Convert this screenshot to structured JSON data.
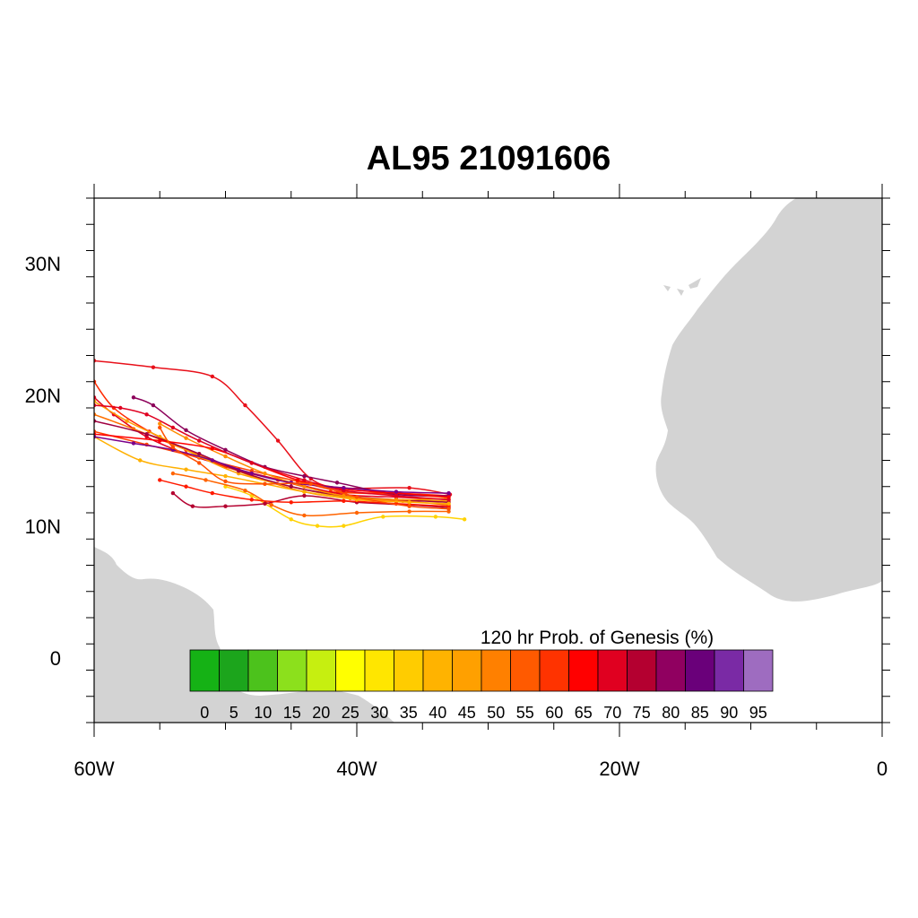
{
  "title": "AL95 21091606",
  "map": {
    "lon_range": [
      -60,
      0
    ],
    "lat_range": [
      -5,
      35
    ],
    "x_ticks": [
      {
        "lon": -60,
        "label": "60W"
      },
      {
        "lon": -40,
        "label": "40W"
      },
      {
        "lon": -20,
        "label": "20W"
      },
      {
        "lon": 0,
        "label": "0"
      }
    ],
    "y_ticks": [
      {
        "lat": 30,
        "label": "30N"
      },
      {
        "lat": 20,
        "label": "20N"
      },
      {
        "lat": 10,
        "label": "10N"
      },
      {
        "lat": 0,
        "label": "0"
      }
    ],
    "land_color": "#d3d3d3"
  },
  "colorbar": {
    "title": "120 hr Prob. of Genesis (%)",
    "labels": [
      "0",
      "5",
      "10",
      "15",
      "20",
      "25",
      "30",
      "35",
      "40",
      "45",
      "50",
      "55",
      "60",
      "65",
      "70",
      "75",
      "80",
      "85",
      "90",
      "95"
    ],
    "colors": [
      "#15b215",
      "#1ca51c",
      "#4cc21c",
      "#8ce01c",
      "#c6ef10",
      "#ffff00",
      "#ffe600",
      "#ffcc00",
      "#ffb300",
      "#ffa000",
      "#ff8000",
      "#ff5a00",
      "#ff3300",
      "#ff0000",
      "#e00020",
      "#b40030",
      "#900060",
      "#6a007a",
      "#7a2aa5",
      "#9e6cc0"
    ]
  },
  "tracks": [
    {
      "color": "#e8101a",
      "points": [
        [
          -32.9,
          12.4
        ],
        [
          -36,
          12.9
        ],
        [
          -41,
          12.9
        ],
        [
          -43.5,
          13.6
        ],
        [
          -46,
          16.5
        ],
        [
          -48.5,
          19.2
        ],
        [
          -51,
          21.4
        ],
        [
          -55.5,
          22.1
        ],
        [
          -60,
          22.6
        ]
      ]
    },
    {
      "color": "#ff2a00",
      "points": [
        [
          -33,
          12.3
        ],
        [
          -37,
          12.5
        ],
        [
          -42,
          12.6
        ],
        [
          -46,
          13.5
        ],
        [
          -50,
          14.5
        ],
        [
          -53,
          15.8
        ],
        [
          -55.8,
          17.2
        ],
        [
          -58.5,
          19.0
        ],
        [
          -60,
          21.0
        ]
      ]
    },
    {
      "color": "#e4001e",
      "points": [
        [
          -33,
          12.0
        ],
        [
          -37,
          12.2
        ],
        [
          -41,
          12.4
        ],
        [
          -45,
          13.3
        ],
        [
          -49,
          14.3
        ],
        [
          -53,
          15.5
        ],
        [
          -56,
          16.8
        ],
        [
          -58.5,
          18.5
        ],
        [
          -60,
          19.8
        ]
      ]
    },
    {
      "color": "#ff4000",
      "points": [
        [
          -33.2,
          12.2
        ],
        [
          -37,
          12.4
        ],
        [
          -41,
          12.6
        ],
        [
          -44.5,
          13.4
        ],
        [
          -48,
          14.2
        ],
        [
          -52,
          15.2
        ],
        [
          -56,
          16.2
        ],
        [
          -60,
          17.2
        ]
      ]
    },
    {
      "color": "#ff7000",
      "points": [
        [
          -33,
          11.6
        ],
        [
          -36.5,
          11.9
        ],
        [
          -40.5,
          12.1
        ],
        [
          -44,
          12.6
        ],
        [
          -48,
          13.8
        ],
        [
          -51,
          15.0
        ],
        [
          -54,
          16.2
        ],
        [
          -57,
          17.4
        ],
        [
          -60,
          18.5
        ]
      ]
    },
    {
      "color": "#ffa000",
      "points": [
        [
          -33,
          11.9
        ],
        [
          -37,
          12.0
        ],
        [
          -41,
          12.2
        ],
        [
          -45,
          13.0
        ],
        [
          -49,
          14.0
        ],
        [
          -52,
          15.3
        ],
        [
          -55,
          16.8
        ],
        [
          -57.5,
          18.0
        ],
        [
          -60,
          19.5
        ]
      ]
    },
    {
      "color": "#8c005a",
      "points": [
        [
          -33,
          12.3
        ],
        [
          -37,
          12.4
        ],
        [
          -41.5,
          13.3
        ],
        [
          -44,
          13.8
        ],
        [
          -47,
          14.5
        ],
        [
          -50,
          15.8
        ],
        [
          -53,
          17.3
        ],
        [
          -55.5,
          19.2
        ],
        [
          -57,
          19.8
        ]
      ]
    },
    {
      "color": "#a00040",
      "points": [
        [
          -33,
          11.8
        ],
        [
          -37,
          12.0
        ],
        [
          -41,
          12.3
        ],
        [
          -45,
          13.0
        ],
        [
          -49,
          14.2
        ],
        [
          -52,
          15.5
        ],
        [
          -56,
          17.0
        ],
        [
          -60,
          18.0
        ]
      ]
    },
    {
      "color": "#ffd200",
      "points": [
        [
          -31.8,
          10.5
        ],
        [
          -34,
          10.7
        ],
        [
          -38,
          10.7
        ],
        [
          -41,
          10.0
        ],
        [
          -43,
          10.0
        ],
        [
          -45,
          10.5
        ],
        [
          -48,
          12.3
        ],
        [
          -50,
          13.0
        ]
      ]
    },
    {
      "color": "#ff6400",
      "points": [
        [
          -33,
          11.1
        ],
        [
          -36,
          11.1
        ],
        [
          -40,
          11.0
        ],
        [
          -44,
          10.8
        ],
        [
          -46.5,
          11.6
        ],
        [
          -48.5,
          12.7
        ],
        [
          -51.5,
          13.5
        ],
        [
          -54,
          14.0
        ]
      ]
    },
    {
      "color": "#b40030",
      "points": [
        [
          -33,
          11.4
        ],
        [
          -36,
          11.6
        ],
        [
          -40,
          11.8
        ],
        [
          -44,
          12.3
        ],
        [
          -47,
          11.7
        ],
        [
          -50,
          11.5
        ],
        [
          -52.5,
          11.5
        ],
        [
          -54,
          12.5
        ]
      ]
    },
    {
      "color": "#ff1a00",
      "points": [
        [
          -33,
          11.5
        ],
        [
          -37,
          11.7
        ],
        [
          -41,
          11.9
        ],
        [
          -45,
          11.8
        ],
        [
          -48,
          12.0
        ],
        [
          -51,
          12.5
        ],
        [
          -53,
          13.0
        ],
        [
          -55,
          13.5
        ]
      ]
    },
    {
      "color": "#ff8c00",
      "points": [
        [
          -33,
          12.1
        ],
        [
          -37,
          12.0
        ],
        [
          -41,
          12.3
        ],
        [
          -44,
          13.0
        ],
        [
          -47,
          14.0
        ],
        [
          -50,
          15.3
        ],
        [
          -53,
          16.7
        ],
        [
          -55,
          17.8
        ]
      ]
    },
    {
      "color": "#ff0000",
      "points": [
        [
          -33,
          12.2
        ],
        [
          -37,
          12.5
        ],
        [
          -41,
          12.8
        ],
        [
          -44.5,
          13.5
        ],
        [
          -48,
          14.8
        ],
        [
          -51,
          15.9
        ],
        [
          -55,
          16.5
        ],
        [
          -60,
          17.0
        ]
      ]
    },
    {
      "color": "#ffb000",
      "points": [
        [
          -33,
          11.7
        ],
        [
          -36,
          11.8
        ],
        [
          -40,
          12.0
        ],
        [
          -44,
          12.6
        ],
        [
          -47,
          13.2
        ],
        [
          -50,
          13.8
        ],
        [
          -53,
          14.3
        ],
        [
          -56.5,
          15.0
        ],
        [
          -60,
          16.8
        ]
      ]
    },
    {
      "color": "#e00020",
      "points": [
        [
          -33,
          12.0
        ],
        [
          -37,
          12.3
        ],
        [
          -41,
          12.7
        ],
        [
          -44,
          13.5
        ],
        [
          -48,
          14.8
        ],
        [
          -52,
          16.5
        ],
        [
          -54,
          17.5
        ],
        [
          -56,
          18.5
        ],
        [
          -58,
          19.0
        ],
        [
          -60,
          19.2
        ]
      ]
    },
    {
      "color": "#7a008a",
      "points": [
        [
          -33,
          12.5
        ],
        [
          -37,
          12.6
        ],
        [
          -41,
          12.9
        ],
        [
          -45,
          13.3
        ],
        [
          -48,
          14.0
        ],
        [
          -51,
          15.0
        ],
        [
          -54,
          15.8
        ],
        [
          -57,
          16.3
        ],
        [
          -60,
          16.8
        ]
      ]
    },
    {
      "color": "#ff5000",
      "points": [
        [
          -33,
          11.3
        ],
        [
          -36,
          11.5
        ],
        [
          -40,
          12.2
        ],
        [
          -43.5,
          13.2
        ],
        [
          -47,
          13.2
        ],
        [
          -50,
          13.4
        ],
        [
          -52,
          14.8
        ],
        [
          -54,
          16.0
        ],
        [
          -55,
          17.5
        ]
      ]
    }
  ]
}
